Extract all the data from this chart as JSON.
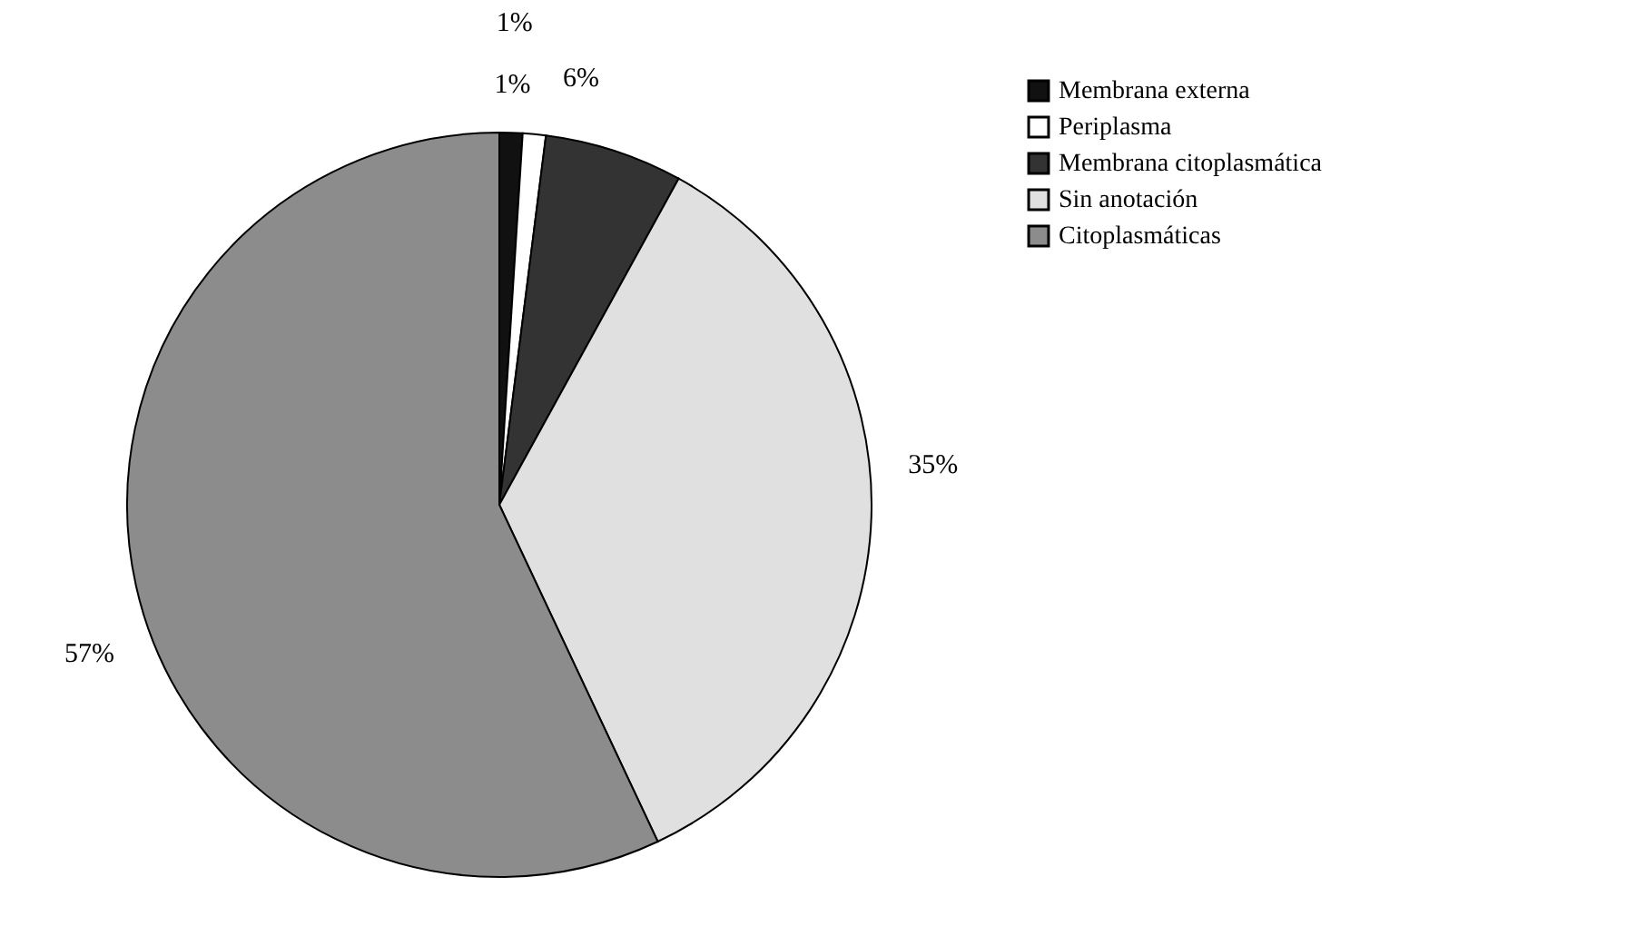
{
  "chart_data": {
    "type": "pie",
    "categories": [
      "Membrana externa",
      "Periplasma",
      "Membrana citoplasmática",
      "Sin anotación",
      "Citoplasmáticas"
    ],
    "values": [
      1,
      1,
      6,
      35,
      57
    ],
    "colors": [
      "#111111",
      "#ffffff",
      "#333333",
      "#e0e0e0",
      "#8c8c8c"
    ],
    "value_labels": [
      "1%",
      "1%",
      "6%",
      "35%",
      "57%"
    ],
    "legend": "right"
  }
}
